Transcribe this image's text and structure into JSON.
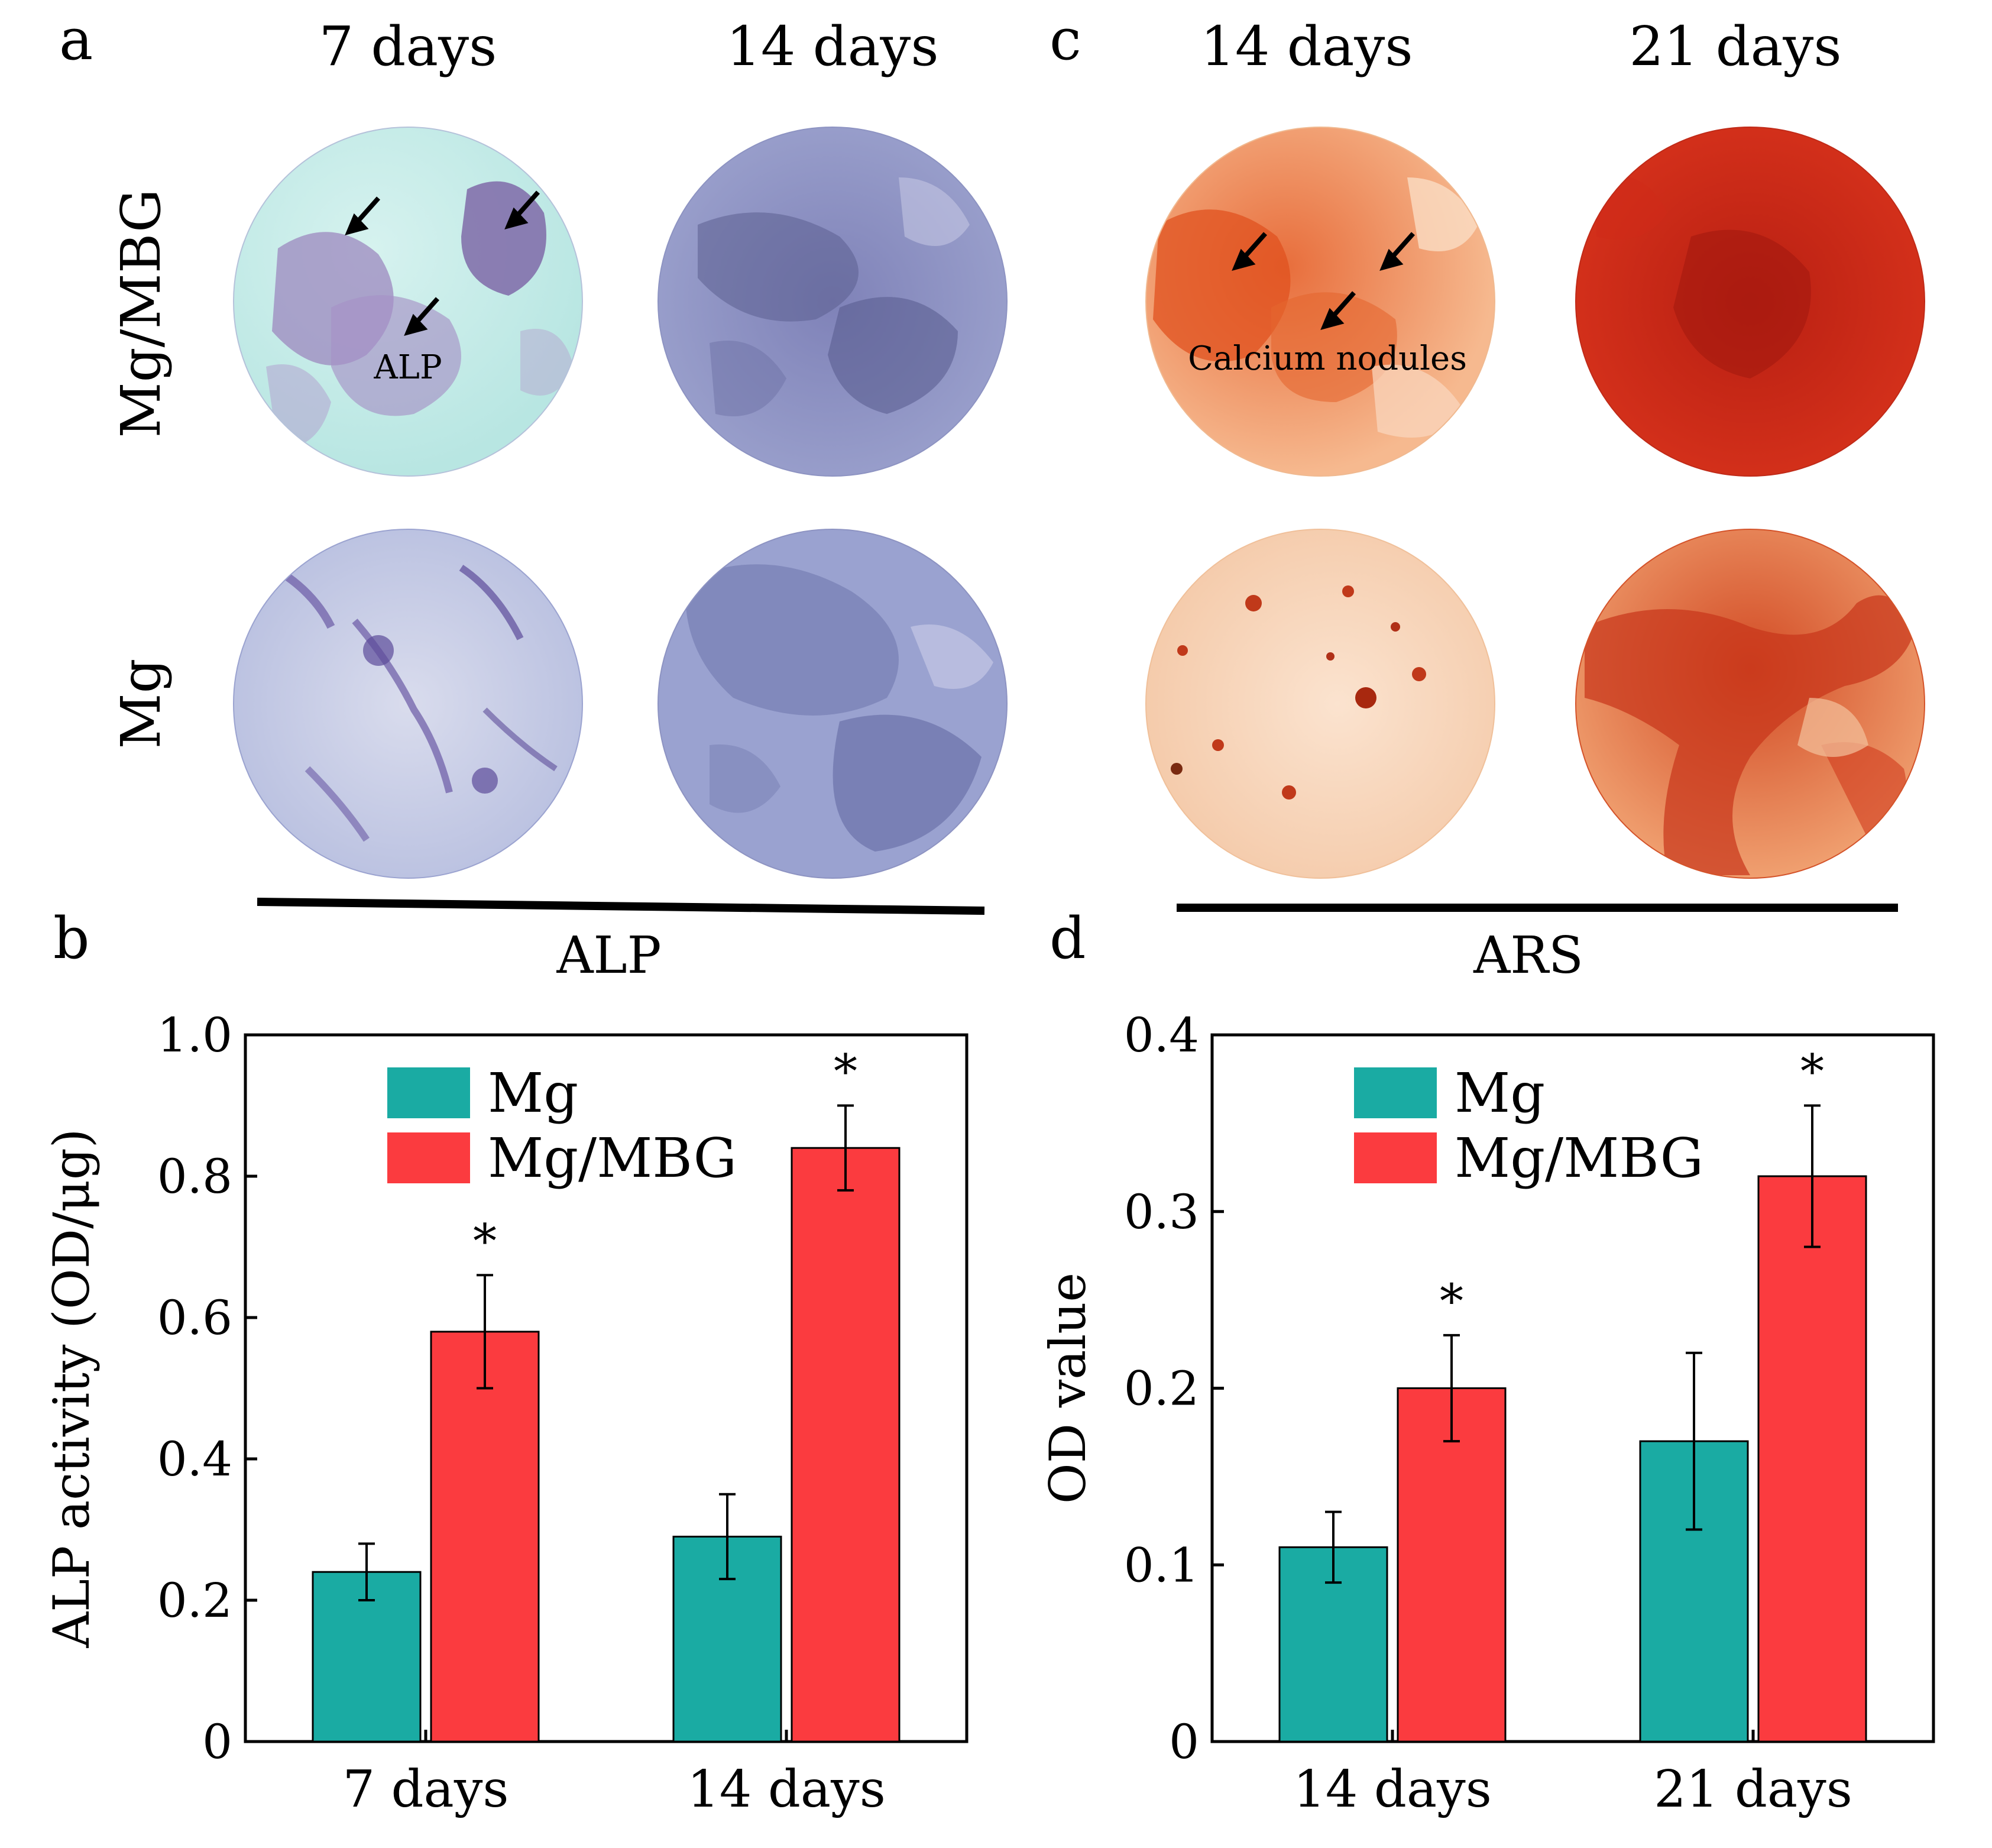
{
  "panels": {
    "a": {
      "letter": "a",
      "columns": [
        "7 days",
        "14 days"
      ],
      "rows": [
        "Mg/MBG",
        "Mg"
      ],
      "annotation": "ALP",
      "technique": "ALP"
    },
    "b": {
      "letter": "b"
    },
    "c": {
      "letter": "c",
      "columns": [
        "14 days",
        "21 days"
      ],
      "annotation": "Calcium nodules",
      "technique": "ARS"
    },
    "d": {
      "letter": "d"
    }
  },
  "colors": {
    "Mg": "#1aaba3",
    "Mg/MBG": "#fb3b3f",
    "alp_background": "#c6ece9",
    "alp_stain": "#6a5ea6",
    "ars_background": "#f7d8c0",
    "ars_stain": "#c92e16"
  },
  "chart_data": [
    {
      "panel": "b",
      "type": "bar",
      "categories": [
        "7 days",
        "14 days"
      ],
      "series": [
        {
          "name": "Mg",
          "values": [
            0.24,
            0.29
          ],
          "errors": [
            0.04,
            0.06
          ]
        },
        {
          "name": "Mg/MBG",
          "values": [
            0.58,
            0.84
          ],
          "errors": [
            0.08,
            0.06
          ]
        }
      ],
      "significance": [
        "",
        "",
        "*",
        "*"
      ],
      "ylabel": "ALP activity (OD/μg)",
      "ylim": [
        0,
        1.0
      ],
      "yticks": [
        "0",
        "0.2",
        "0.4",
        "0.6",
        "0.8",
        "1.0"
      ],
      "legend": "top-left"
    },
    {
      "panel": "d",
      "type": "bar",
      "categories": [
        "14 days",
        "21 days"
      ],
      "series": [
        {
          "name": "Mg",
          "values": [
            0.11,
            0.17
          ],
          "errors": [
            0.02,
            0.05
          ]
        },
        {
          "name": "Mg/MBG",
          "values": [
            0.2,
            0.32
          ],
          "errors": [
            0.03,
            0.04
          ]
        }
      ],
      "significance": [
        "",
        "",
        "*",
        "*"
      ],
      "ylabel": "OD value",
      "ylim": [
        0,
        0.4
      ],
      "yticks": [
        "0",
        "0.1",
        "0.2",
        "0.3",
        "0.4"
      ],
      "legend": "top-left"
    }
  ]
}
